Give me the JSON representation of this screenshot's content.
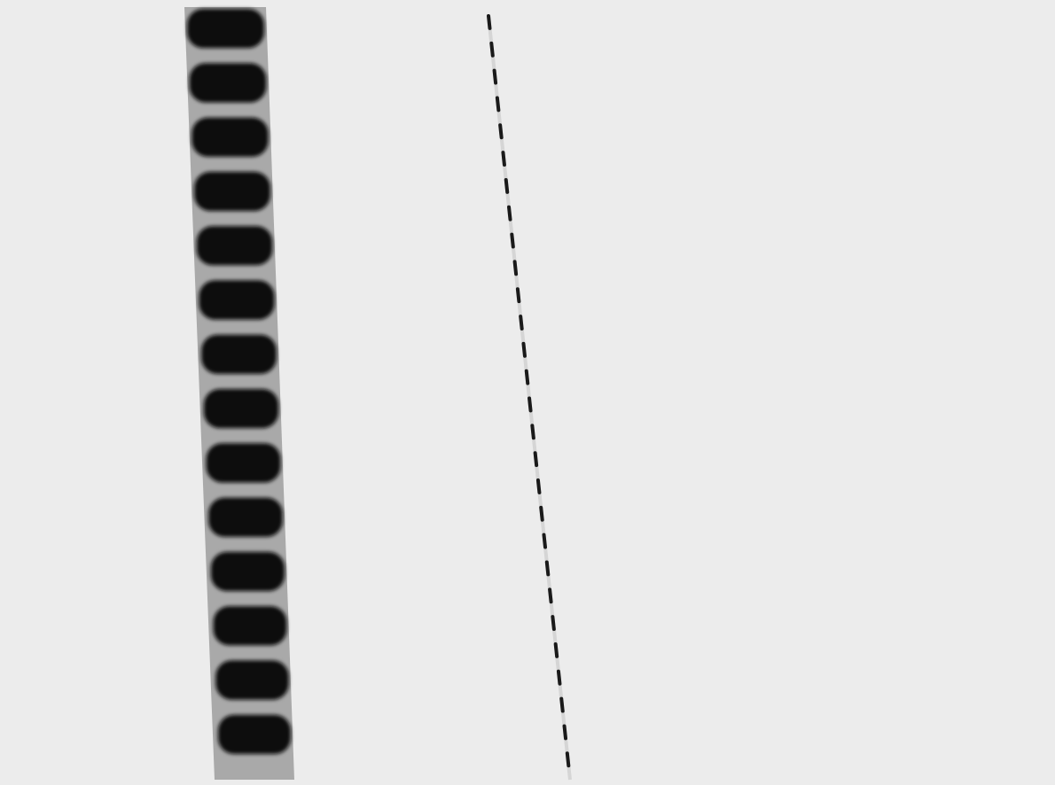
{
  "scene": {
    "type": "abstract-stripe-pattern",
    "accent_color": "#111111",
    "strip_color": "#a9a9a9",
    "background_color": "#ececec",
    "rail_color": "#1a1a1a"
  },
  "blocks": [
    {
      "index": 1
    },
    {
      "index": 2
    },
    {
      "index": 3
    },
    {
      "index": 4
    },
    {
      "index": 5
    },
    {
      "index": 6
    },
    {
      "index": 7
    },
    {
      "index": 8
    },
    {
      "index": 9
    },
    {
      "index": 10
    },
    {
      "index": 11
    },
    {
      "index": 12
    },
    {
      "index": 13
    },
    {
      "index": 14
    }
  ]
}
